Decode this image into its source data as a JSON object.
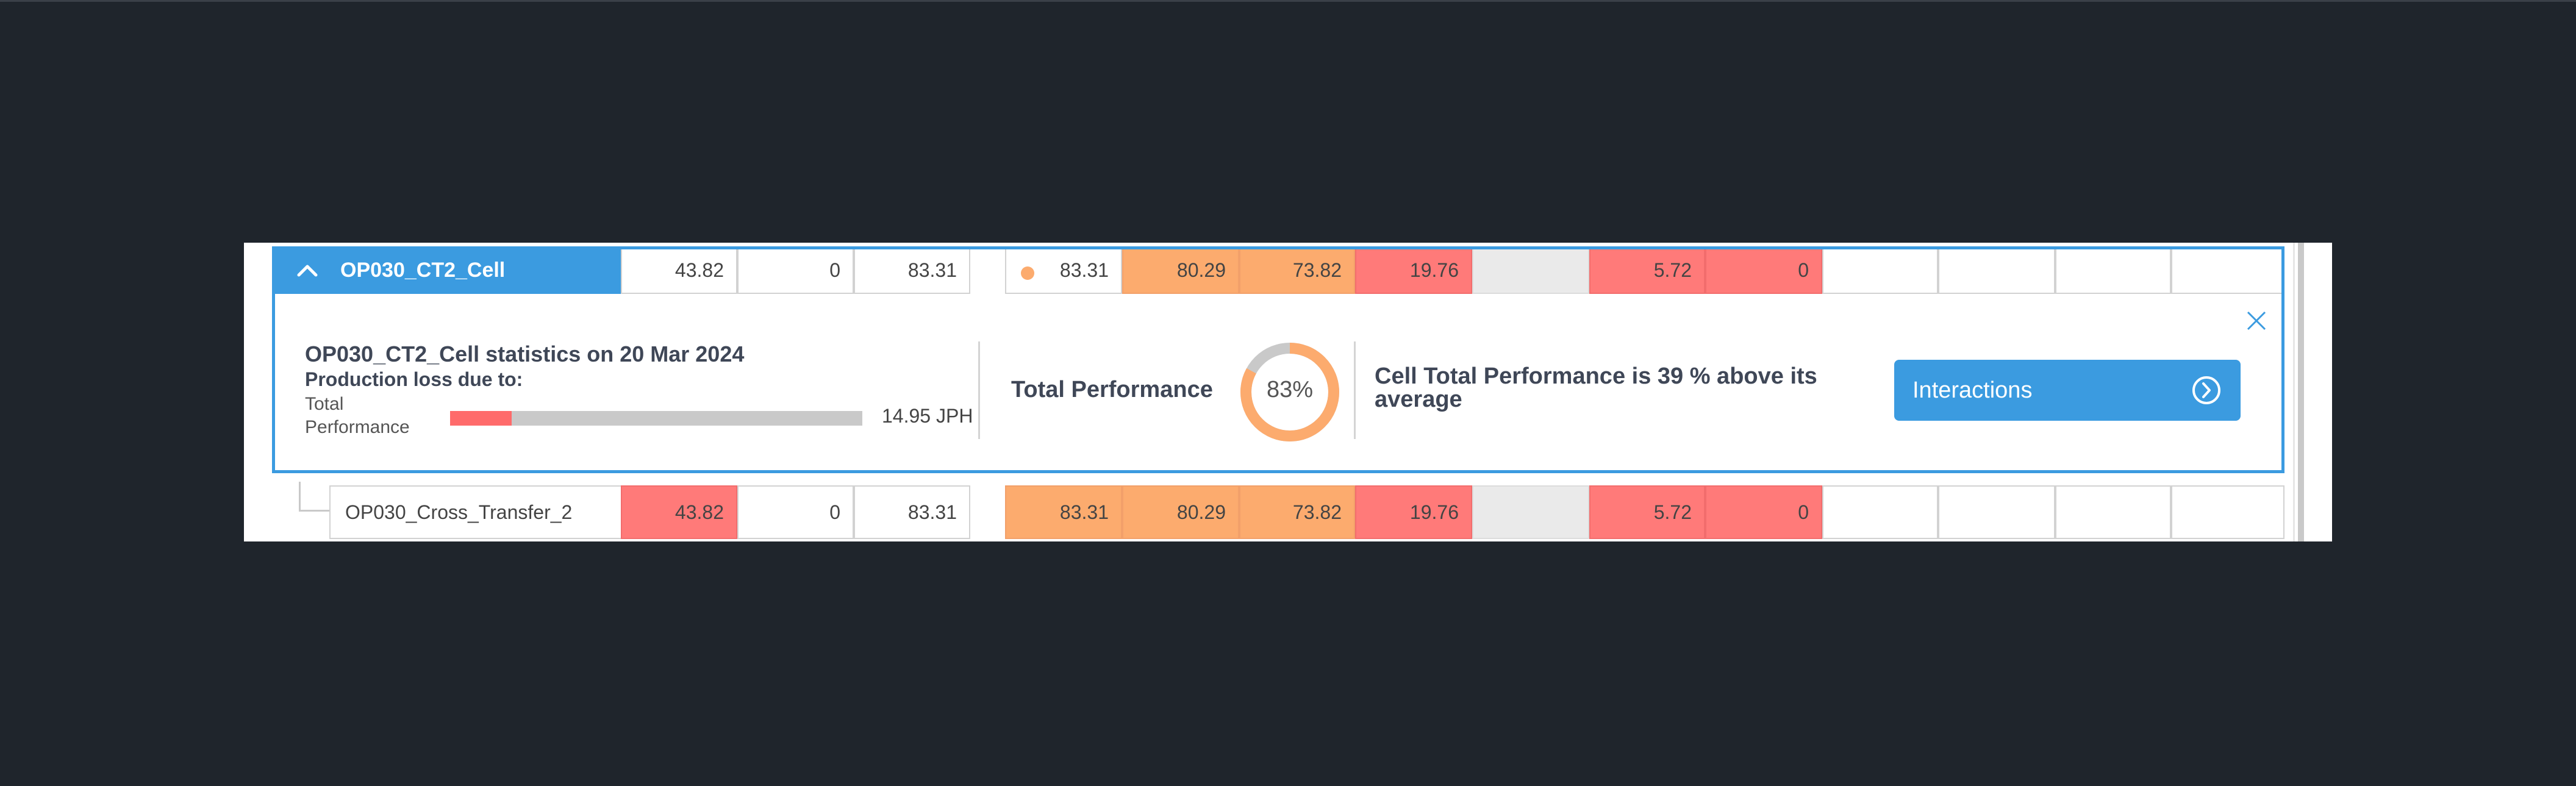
{
  "header_row": {
    "name": "OP030_CT2_Cell",
    "values": [
      "43.82",
      "0",
      "83.31",
      "83.31",
      "80.29",
      "73.82",
      "19.76",
      "",
      "5.72",
      "0",
      "",
      "",
      "",
      ""
    ],
    "status_dot_color": "#fcab6e"
  },
  "details": {
    "title": "OP030_CT2_Cell statistics on 20 Mar 2024",
    "subtitle": "Production loss due to:",
    "loss_label": "Total Performance",
    "loss_value": "14.95 JPH",
    "loss_fraction": 0.15,
    "total_performance_label": "Total Performance",
    "total_performance_percent": "83%",
    "total_performance_fraction": 0.83,
    "message": "Cell Total Performance is 39 % above its average",
    "interactions_button": "Interactions"
  },
  "child_row": {
    "name": "OP030_Cross_Transfer_2",
    "values": [
      "43.82",
      "0",
      "83.31",
      "83.31",
      "80.29",
      "73.82",
      "19.76",
      "",
      "5.72",
      "0",
      "",
      "",
      "",
      ""
    ]
  },
  "colors": {
    "accent": "#3b9be0",
    "orange": "#fcab6e",
    "red": "#ff7a79",
    "gray": "#eaeaea"
  },
  "icons": {
    "collapse": "chevron-up-icon",
    "close": "close-icon",
    "button_arrow": "chevron-right-circle-icon"
  }
}
